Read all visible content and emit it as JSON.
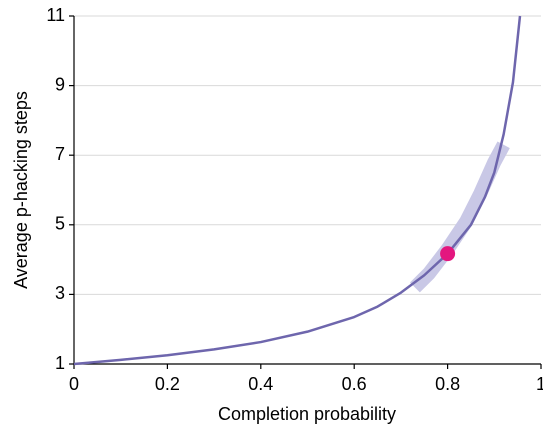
{
  "chart_data": {
    "type": "line",
    "xlabel": "Completion probability",
    "ylabel": "Average p-hacking steps",
    "xlim": [
      0,
      1
    ],
    "xticks": [
      0,
      0.2,
      0.4,
      0.6,
      0.8,
      1
    ],
    "ylim": [
      1,
      11
    ],
    "yticks": [
      1,
      3,
      5,
      7,
      9,
      11
    ],
    "grid": true,
    "series": [
      {
        "color": "#c9c8e6",
        "width": 14,
        "x": [
          0.73,
          0.76,
          0.8,
          0.84,
          0.87,
          0.9,
          0.92
        ],
        "values": [
          3.2,
          3.6,
          4.3,
          5.1,
          5.9,
          6.8,
          7.3
        ]
      },
      {
        "color": "#6e66ad",
        "width": 2.5,
        "x": [
          0,
          0.1,
          0.2,
          0.3,
          0.4,
          0.5,
          0.6,
          0.65,
          0.7,
          0.75,
          0.8,
          0.85,
          0.88,
          0.9,
          0.92,
          0.94,
          0.955
        ],
        "values": [
          1,
          1.12,
          1.25,
          1.42,
          1.63,
          1.93,
          2.35,
          2.65,
          3.05,
          3.55,
          4.17,
          5.0,
          5.8,
          6.5,
          7.6,
          9.1,
          11
        ]
      }
    ],
    "points": [
      {
        "x": 0.8,
        "y": 4.17,
        "color": "#e3177f"
      }
    ]
  }
}
